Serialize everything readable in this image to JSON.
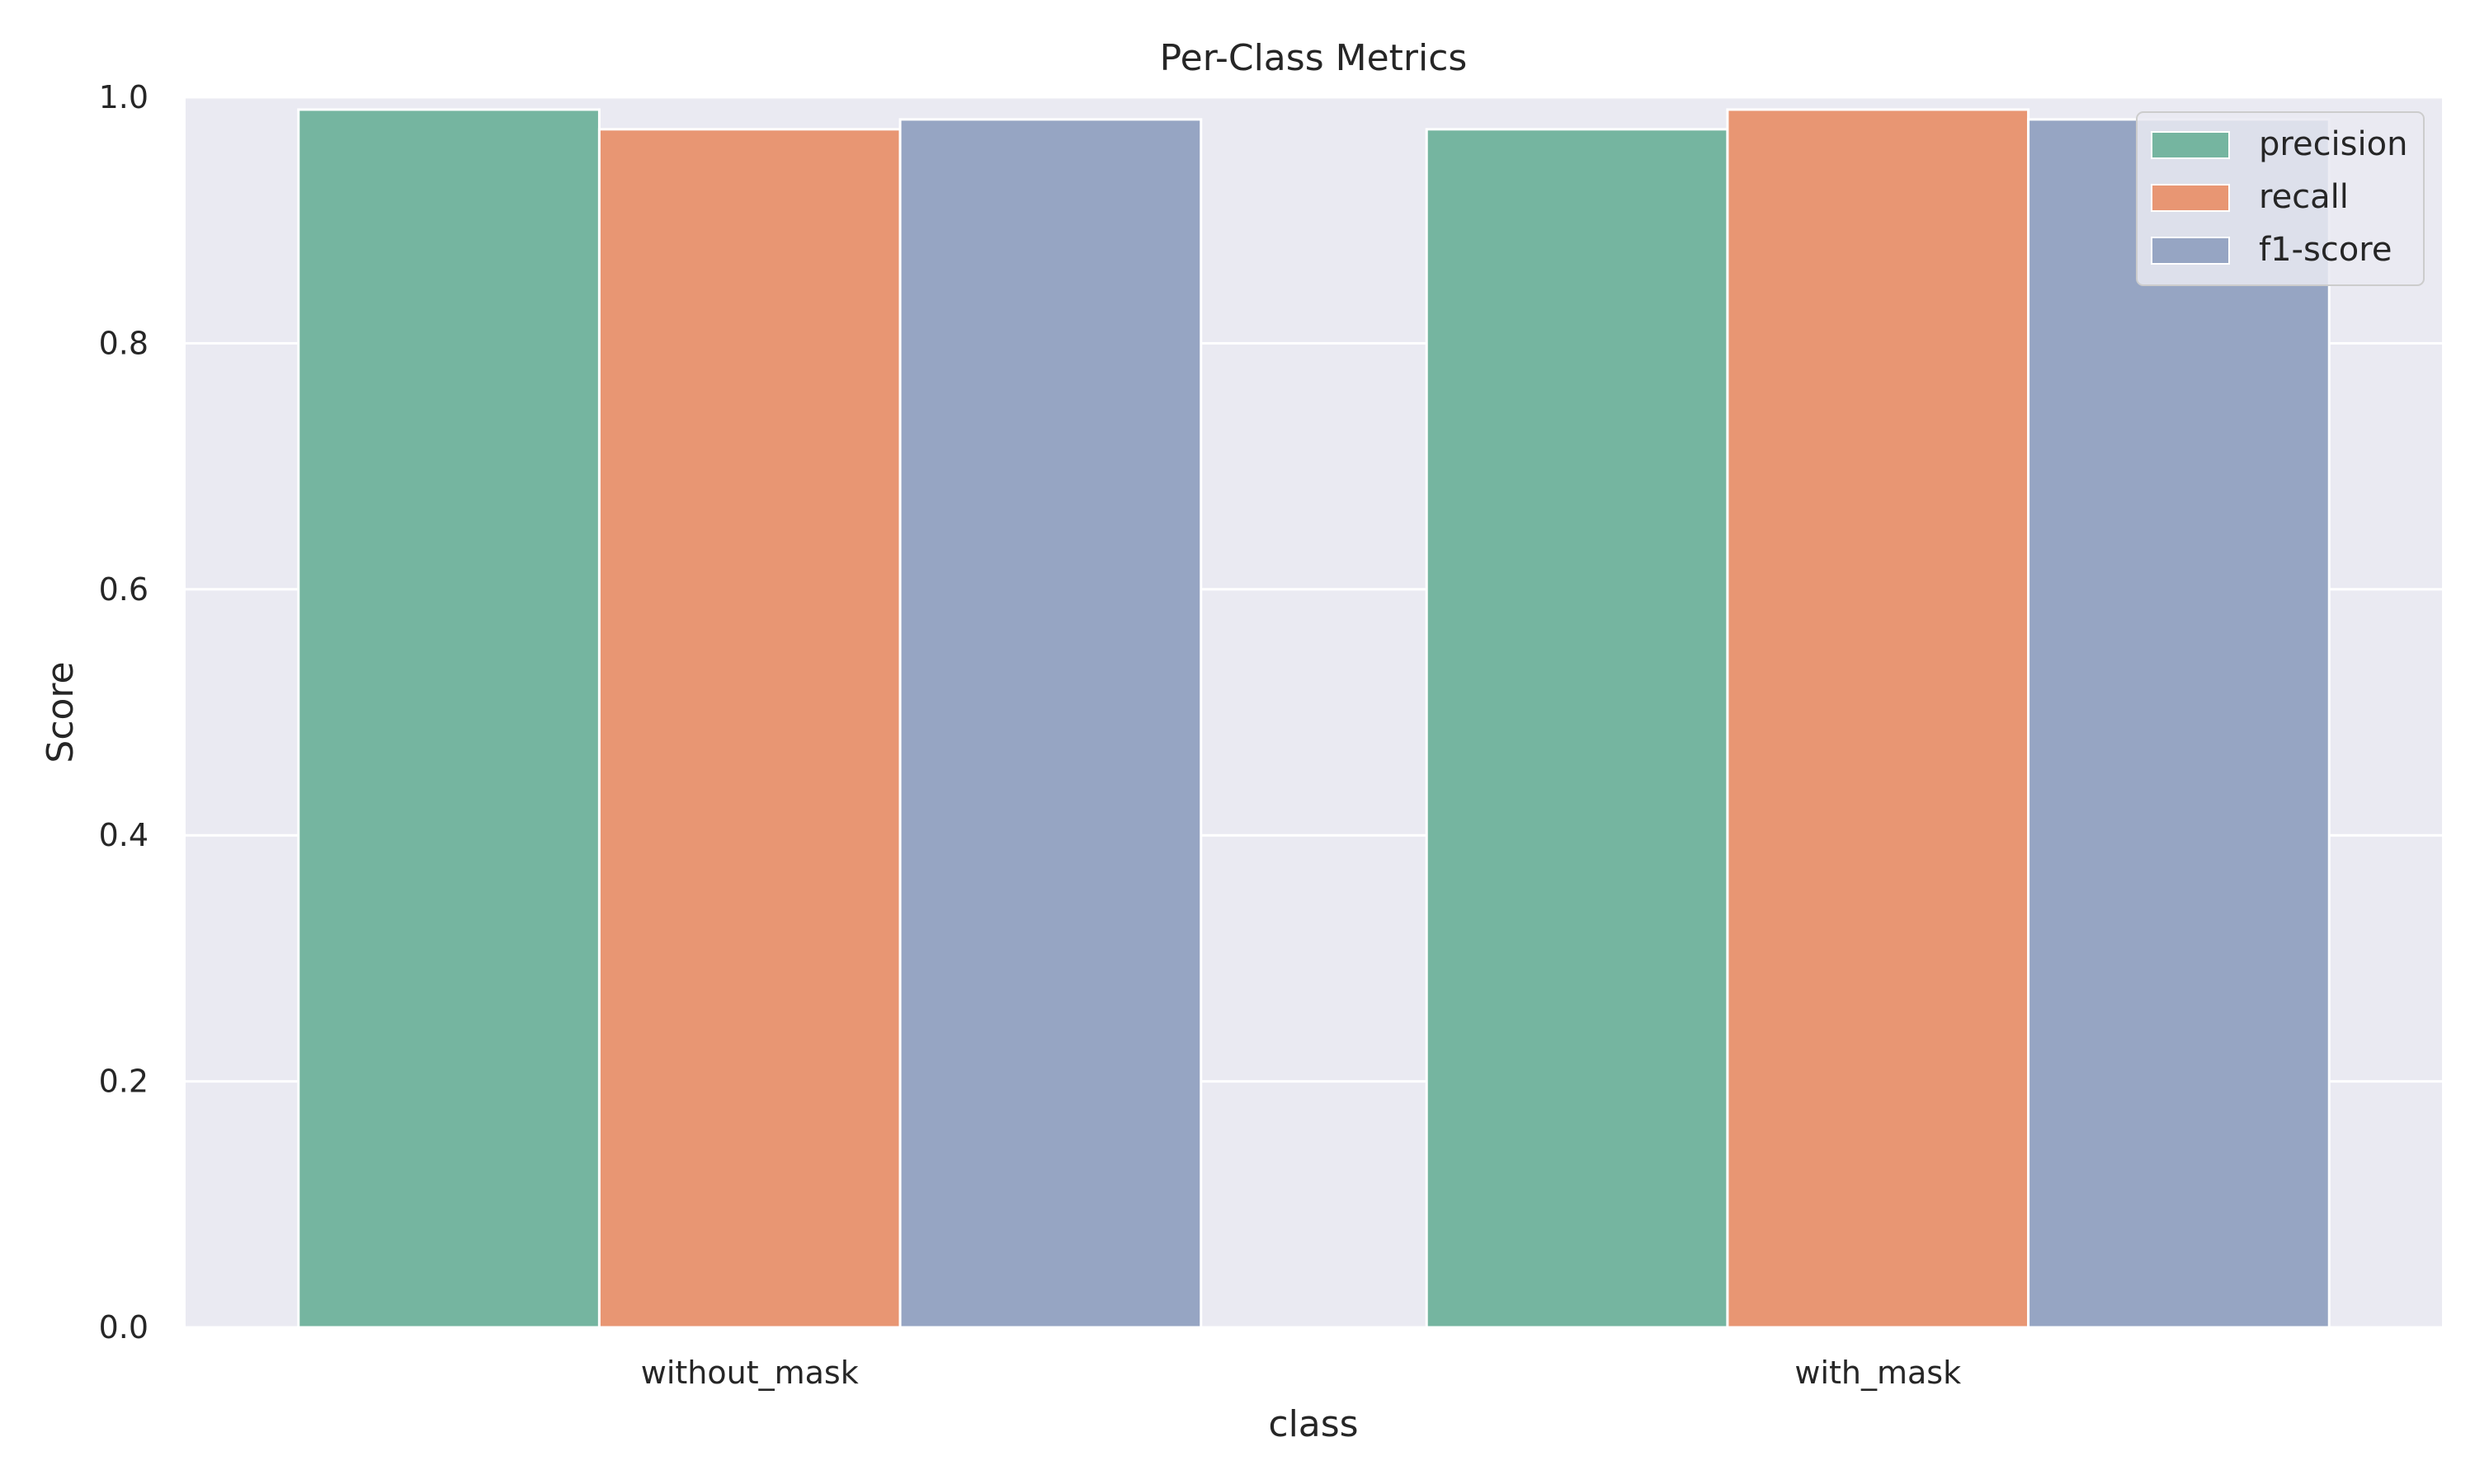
{
  "chart_data": {
    "type": "bar",
    "title": "Per-Class Metrics",
    "xlabel": "class",
    "ylabel": "Score",
    "categories": [
      "without_mask",
      "with_mask"
    ],
    "series": [
      {
        "name": "precision",
        "values": [
          0.99,
          0.974
        ],
        "color": "#75b5a0"
      },
      {
        "name": "recall",
        "values": [
          0.974,
          0.99
        ],
        "color": "#e89673"
      },
      {
        "name": "f1-score",
        "values": [
          0.982,
          0.982
        ],
        "color": "#96a5c3"
      }
    ],
    "ylim": [
      0,
      1.0
    ],
    "yticks": [
      "0.0",
      "0.2",
      "0.4",
      "0.6",
      "0.8",
      "1.0"
    ],
    "grid": true,
    "legend_position": "top-right",
    "background": "#eaeaf2"
  }
}
